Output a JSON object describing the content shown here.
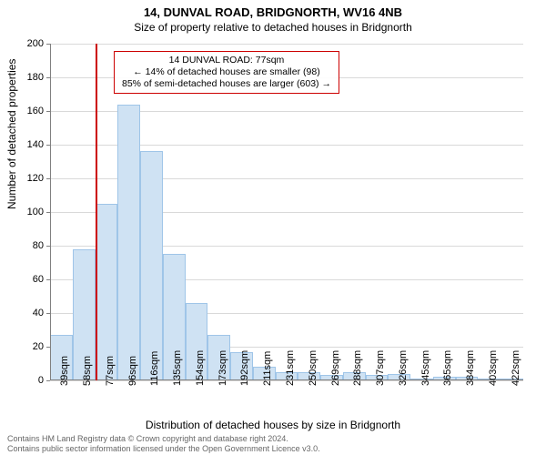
{
  "title_line1": "14, DUNVAL ROAD, BRIDGNORTH, WV16 4NB",
  "title_line2": "Size of property relative to detached houses in Bridgnorth",
  "ylabel": "Number of detached properties",
  "xlabel": "Distribution of detached houses by size in Bridgnorth",
  "footer_line1": "Contains HM Land Registry data © Crown copyright and database right 2024.",
  "footer_line2": "Contains public sector information licensed under the Open Government Licence v3.0.",
  "chart": {
    "type": "histogram",
    "ylim": [
      0,
      200
    ],
    "ytick_step": 20,
    "yticks": [
      0,
      20,
      40,
      60,
      80,
      100,
      120,
      140,
      160,
      180,
      200
    ],
    "grid_color": "#d9d9d9",
    "axis_color": "#808080",
    "bar_fill": "#cfe2f3",
    "bar_border": "#9fc5e8",
    "background_color": "#ffffff",
    "tick_fontsize": 11,
    "label_fontsize": 12,
    "x_unit": "sqm",
    "x_start": 39,
    "x_step": 19.2,
    "x_count": 21,
    "x_categories": [
      "39sqm",
      "58sqm",
      "77sqm",
      "96sqm",
      "116sqm",
      "135sqm",
      "154sqm",
      "173sqm",
      "192sqm",
      "211sqm",
      "231sqm",
      "250sqm",
      "269sqm",
      "288sqm",
      "307sqm",
      "326sqm",
      "345sqm",
      "365sqm",
      "384sqm",
      "403sqm",
      "422sqm"
    ],
    "values": [
      27,
      78,
      105,
      164,
      136,
      75,
      46,
      27,
      17,
      8,
      5,
      5,
      3,
      5,
      3,
      4,
      1,
      2,
      2,
      1,
      1
    ],
    "reference": {
      "x_index": 2,
      "line_color": "#cc0000",
      "line_width": 2,
      "box_border": "#cc0000",
      "box_bg": "rgba(255,255,255,0.92)",
      "line1": "14 DUNVAL ROAD: 77sqm",
      "line2": "← 14% of detached houses are smaller (98)",
      "line3": "85% of semi-detached houses are larger (603) →"
    }
  }
}
